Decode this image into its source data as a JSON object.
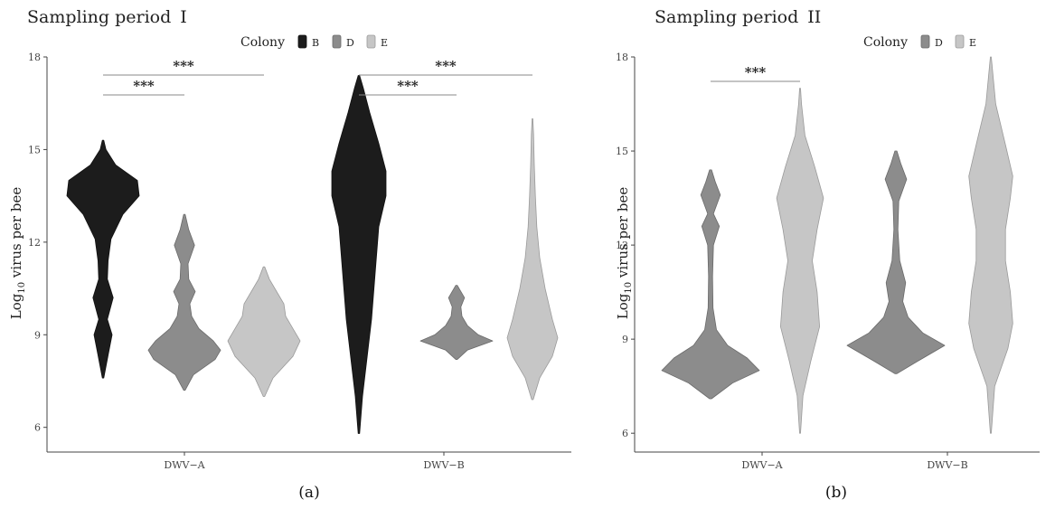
{
  "chart_data": [
    {
      "type": "violin",
      "panel_label": "(a)",
      "title": "Sampling period I",
      "title_parts": [
        "Sampling period",
        "I"
      ],
      "legend_title": "Colony",
      "legend_placement": "top",
      "ylabel": "Log10 virus per bee",
      "ylabel_parts": [
        "Log",
        "10",
        " virus per bee"
      ],
      "yticks": [
        "6",
        "9",
        "12",
        "15",
        "18"
      ],
      "ylim": [
        5.2,
        18
      ],
      "grid": false,
      "categories": [
        "DWV−A",
        "DWV−B"
      ],
      "series": [
        {
          "name": "B",
          "color": "#1c1c1c",
          "outline": "#111111",
          "violins": [
            {
              "category": "DWV−A",
              "range": [
                7.6,
                15.3
              ],
              "profile": [
                [
                  7.6,
                  0.02
                ],
                [
                  8.4,
                  0.15
                ],
                [
                  9.0,
                  0.25
                ],
                [
                  9.5,
                  0.12
                ],
                [
                  10.2,
                  0.28
                ],
                [
                  10.8,
                  0.12
                ],
                [
                  11.4,
                  0.14
                ],
                [
                  12.1,
                  0.22
                ],
                [
                  12.9,
                  0.55
                ],
                [
                  13.5,
                  1.0
                ],
                [
                  14.0,
                  0.95
                ],
                [
                  14.5,
                  0.35
                ],
                [
                  15.0,
                  0.08
                ],
                [
                  15.3,
                  0.02
                ]
              ]
            },
            {
              "category": "DWV−B",
              "range": [
                5.8,
                17.4
              ],
              "profile": [
                [
                  5.8,
                  0.02
                ],
                [
                  7.0,
                  0.1
                ],
                [
                  8.5,
                  0.25
                ],
                [
                  9.5,
                  0.35
                ],
                [
                  11.0,
                  0.45
                ],
                [
                  12.5,
                  0.55
                ],
                [
                  13.5,
                  0.75
                ],
                [
                  14.3,
                  0.75
                ],
                [
                  15.2,
                  0.55
                ],
                [
                  16.2,
                  0.3
                ],
                [
                  17.0,
                  0.12
                ],
                [
                  17.4,
                  0.02
                ]
              ]
            }
          ]
        },
        {
          "name": "D",
          "color": "#8c8c8c",
          "outline": "#6a6a6a",
          "violins": [
            {
              "category": "DWV−A",
              "range": [
                7.2,
                12.9
              ],
              "profile": [
                [
                  7.2,
                  0.02
                ],
                [
                  7.7,
                  0.25
                ],
                [
                  8.2,
                  0.85
                ],
                [
                  8.5,
                  1.0
                ],
                [
                  8.8,
                  0.8
                ],
                [
                  9.2,
                  0.4
                ],
                [
                  9.6,
                  0.2
                ],
                [
                  10.0,
                  0.15
                ],
                [
                  10.4,
                  0.3
                ],
                [
                  10.8,
                  0.12
                ],
                [
                  11.3,
                  0.1
                ],
                [
                  11.9,
                  0.28
                ],
                [
                  12.4,
                  0.12
                ],
                [
                  12.9,
                  0.02
                ]
              ]
            },
            {
              "category": "DWV−B",
              "range": [
                8.2,
                10.6
              ],
              "profile": [
                [
                  8.2,
                  0.02
                ],
                [
                  8.5,
                  0.3
                ],
                [
                  8.8,
                  1.0
                ],
                [
                  9.0,
                  0.6
                ],
                [
                  9.3,
                  0.3
                ],
                [
                  9.6,
                  0.15
                ],
                [
                  9.9,
                  0.12
                ],
                [
                  10.2,
                  0.22
                ],
                [
                  10.6,
                  0.02
                ]
              ]
            }
          ]
        },
        {
          "name": "E",
          "color": "#c6c6c6",
          "outline": "#9a9a9a",
          "violins": [
            {
              "category": "DWV−A",
              "range": [
                7.0,
                11.2
              ],
              "profile": [
                [
                  7.0,
                  0.02
                ],
                [
                  7.6,
                  0.25
                ],
                [
                  8.3,
                  0.8
                ],
                [
                  8.8,
                  1.0
                ],
                [
                  9.2,
                  0.8
                ],
                [
                  9.6,
                  0.6
                ],
                [
                  10.0,
                  0.55
                ],
                [
                  10.4,
                  0.35
                ],
                [
                  10.8,
                  0.15
                ],
                [
                  11.2,
                  0.02
                ]
              ]
            },
            {
              "category": "DWV−B",
              "range": [
                6.9,
                16.0
              ],
              "profile": [
                [
                  6.9,
                  0.02
                ],
                [
                  7.6,
                  0.2
                ],
                [
                  8.3,
                  0.55
                ],
                [
                  8.9,
                  0.7
                ],
                [
                  9.5,
                  0.55
                ],
                [
                  10.5,
                  0.35
                ],
                [
                  11.5,
                  0.2
                ],
                [
                  12.5,
                  0.12
                ],
                [
                  13.5,
                  0.08
                ],
                [
                  14.5,
                  0.05
                ],
                [
                  15.5,
                  0.03
                ],
                [
                  16.0,
                  0.01
                ]
              ]
            }
          ]
        }
      ],
      "significance": [
        {
          "category": "DWV−A",
          "from": "B",
          "to": "D",
          "label": "***",
          "level": 0
        },
        {
          "category": "DWV−A",
          "from": "B",
          "to": "E",
          "label": "***",
          "level": 1
        },
        {
          "category": "DWV−B",
          "from": "B",
          "to": "D",
          "label": "***",
          "level": 0
        },
        {
          "category": "DWV−B",
          "from": "B",
          "to": "E",
          "label": "***",
          "level": 1
        }
      ]
    },
    {
      "type": "violin",
      "panel_label": "(b)",
      "title": "Sampling period II",
      "title_parts": [
        "Sampling period",
        "II"
      ],
      "legend_title": "Colony",
      "legend_placement": "top-right",
      "ylabel": "Log10 virus per bee",
      "ylabel_parts": [
        "Log",
        "10",
        " virus per bee"
      ],
      "yticks": [
        "6",
        "9",
        "12",
        "15",
        "18"
      ],
      "ylim": [
        5.4,
        18
      ],
      "grid": false,
      "categories": [
        "DWV−A",
        "DWV−B"
      ],
      "series": [
        {
          "name": "D",
          "color": "#8c8c8c",
          "outline": "#6a6a6a",
          "violins": [
            {
              "category": "DWV−A",
              "range": [
                7.1,
                14.4
              ],
              "profile": [
                [
                  7.1,
                  0.02
                ],
                [
                  7.6,
                  0.45
                ],
                [
                  8.0,
                  1.0
                ],
                [
                  8.4,
                  0.75
                ],
                [
                  8.8,
                  0.35
                ],
                [
                  9.3,
                  0.12
                ],
                [
                  10.0,
                  0.05
                ],
                [
                  11.0,
                  0.04
                ],
                [
                  12.0,
                  0.06
                ],
                [
                  12.6,
                  0.18
                ],
                [
                  13.0,
                  0.06
                ],
                [
                  13.6,
                  0.2
                ],
                [
                  14.0,
                  0.1
                ],
                [
                  14.4,
                  0.02
                ]
              ]
            },
            {
              "category": "DWV−B",
              "range": [
                7.9,
                15.0
              ],
              "profile": [
                [
                  7.9,
                  0.02
                ],
                [
                  8.3,
                  0.45
                ],
                [
                  8.8,
                  1.0
                ],
                [
                  9.2,
                  0.55
                ],
                [
                  9.7,
                  0.25
                ],
                [
                  10.2,
                  0.14
                ],
                [
                  10.8,
                  0.2
                ],
                [
                  11.5,
                  0.08
                ],
                [
                  12.5,
                  0.04
                ],
                [
                  13.4,
                  0.06
                ],
                [
                  14.1,
                  0.22
                ],
                [
                  14.6,
                  0.1
                ],
                [
                  15.0,
                  0.02
                ]
              ]
            }
          ]
        },
        {
          "name": "E",
          "color": "#c6c6c6",
          "outline": "#9a9a9a",
          "violins": [
            {
              "category": "DWV−A",
              "range": [
                6.0,
                17.0
              ],
              "profile": [
                [
                  6.0,
                  0.01
                ],
                [
                  7.2,
                  0.06
                ],
                [
                  8.3,
                  0.22
                ],
                [
                  9.4,
                  0.4
                ],
                [
                  10.5,
                  0.35
                ],
                [
                  11.5,
                  0.25
                ],
                [
                  12.5,
                  0.35
                ],
                [
                  13.5,
                  0.48
                ],
                [
                  14.5,
                  0.3
                ],
                [
                  15.5,
                  0.1
                ],
                [
                  16.5,
                  0.03
                ],
                [
                  17.0,
                  0.01
                ]
              ]
            },
            {
              "category": "DWV−B",
              "range": [
                6.0,
                18.0
              ],
              "profile": [
                [
                  6.0,
                  0.01
                ],
                [
                  7.5,
                  0.08
                ],
                [
                  8.7,
                  0.35
                ],
                [
                  9.5,
                  0.45
                ],
                [
                  10.5,
                  0.4
                ],
                [
                  11.5,
                  0.3
                ],
                [
                  12.5,
                  0.3
                ],
                [
                  13.5,
                  0.4
                ],
                [
                  14.2,
                  0.45
                ],
                [
                  15.2,
                  0.3
                ],
                [
                  16.5,
                  0.1
                ],
                [
                  18.0,
                  0.01
                ]
              ]
            }
          ]
        }
      ],
      "significance": [
        {
          "category": "DWV−A",
          "from": "D",
          "to": "E",
          "label": "***",
          "level": 0
        }
      ]
    }
  ]
}
